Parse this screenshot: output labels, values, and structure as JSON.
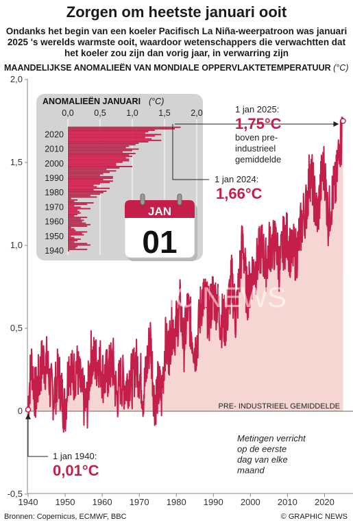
{
  "header": {
    "title": "Zorgen om heetste januari ooit",
    "subtitle": "Ondanks het begin van een koeler Pacifisch La Niña-weerpatroon was januari 2025 's werelds warmste ooit, waardoor wetenschappers die verwachtten dat het koeler zou zijn dan vorig jaar, in verwarring zijn",
    "yaxis_title": "MAANDELIJKSE ANOMALIEËN VAN MONDIALE OPPERVLAKTETEMPERATUUR",
    "yaxis_unit": "(°C)"
  },
  "footer": {
    "source": "Bronnen: Copernicus, ECMWF, BBC",
    "credit": "© GRAPHIC NEWS"
  },
  "watermark": "GRAPHIC NEWS",
  "colors": {
    "line": "#c41e4a",
    "fill": "#f6d6d2",
    "accent": "#c41e4a",
    "inset_bg": "#d3d3d3"
  },
  "chart_data": [
    {
      "type": "line",
      "title": "MAANDELIJKSE ANOMALIEËN VAN MONDIALE OPPERVLAKTETEMPERATUUR (°C)",
      "x_range": [
        1940,
        2025.1
      ],
      "ylim": [
        -0.5,
        2.0
      ],
      "y_ticks": [
        "2,0",
        "1,5",
        "1,0",
        "0,5",
        "0",
        "-0,5"
      ],
      "x_ticks": [
        "1940",
        "1950",
        "1960",
        "1970",
        "1980",
        "1990",
        "2000",
        "2010",
        "2020"
      ],
      "reference_line": {
        "y": 0,
        "label": "PRE- INDUSTRIEEL GEMIDDELDE"
      },
      "note": "Metingen verricht op de eerste dag van elke maand",
      "annotations": [
        {
          "date": "1 jan 2025:",
          "value": "1,75°C",
          "text": "boven pre- industrieel gemiddelde",
          "x": 2025.0,
          "y": 1.75
        },
        {
          "date": "1 jan 2024:",
          "value": "1,66°C",
          "x": 2024.0,
          "y": 1.66
        },
        {
          "date": "1 jan 1940:",
          "value": "0,01°C",
          "x": 1940.0,
          "y": 0.01
        }
      ],
      "calendar": {
        "month": "JAN",
        "day": "01"
      },
      "series": [
        {
          "points": [
            [
              1940,
              0.01
            ],
            [
              1941,
              0.3
            ],
            [
              1942,
              0.12
            ],
            [
              1943,
              0.15
            ],
            [
              1944,
              0.35
            ],
            [
              1945,
              0.3
            ],
            [
              1946,
              0.1
            ],
            [
              1947,
              0.15
            ],
            [
              1948,
              0.2
            ],
            [
              1949,
              0.1
            ],
            [
              1950,
              0.05
            ],
            [
              1951,
              0.25
            ],
            [
              1952,
              0.22
            ],
            [
              1953,
              0.3
            ],
            [
              1954,
              0.12
            ],
            [
              1955,
              0.1
            ],
            [
              1956,
              0.05
            ],
            [
              1957,
              0.3
            ],
            [
              1958,
              0.35
            ],
            [
              1959,
              0.28
            ],
            [
              1960,
              0.22
            ],
            [
              1961,
              0.25
            ],
            [
              1962,
              0.2
            ],
            [
              1963,
              0.3
            ],
            [
              1964,
              0.1
            ],
            [
              1965,
              0.15
            ],
            [
              1966,
              0.2
            ],
            [
              1967,
              0.18
            ],
            [
              1968,
              0.15
            ],
            [
              1969,
              0.35
            ],
            [
              1970,
              0.2
            ],
            [
              1971,
              0.1
            ],
            [
              1972,
              0.3
            ],
            [
              1973,
              0.4
            ],
            [
              1974,
              0.1
            ],
            [
              1975,
              0.15
            ],
            [
              1976,
              0.05
            ],
            [
              1977,
              0.45
            ],
            [
              1978,
              0.35
            ],
            [
              1979,
              0.5
            ],
            [
              1980,
              0.55
            ],
            [
              1981,
              0.6
            ],
            [
              1982,
              0.4
            ],
            [
              1983,
              0.65
            ],
            [
              1984,
              0.45
            ],
            [
              1985,
              0.4
            ],
            [
              1986,
              0.5
            ],
            [
              1987,
              0.65
            ],
            [
              1988,
              0.7
            ],
            [
              1989,
              0.55
            ],
            [
              1990,
              0.7
            ],
            [
              1991,
              0.7
            ],
            [
              1992,
              0.5
            ],
            [
              1993,
              0.55
            ],
            [
              1994,
              0.65
            ],
            [
              1995,
              0.75
            ],
            [
              1996,
              0.6
            ],
            [
              1997,
              0.8
            ],
            [
              1998,
              1.0
            ],
            [
              1999,
              0.75
            ],
            [
              2000,
              0.75
            ],
            [
              2001,
              0.85
            ],
            [
              2002,
              0.95
            ],
            [
              2003,
              0.95
            ],
            [
              2004,
              0.9
            ],
            [
              2005,
              1.0
            ],
            [
              2006,
              0.95
            ],
            [
              2007,
              1.05
            ],
            [
              2008,
              0.85
            ],
            [
              2009,
              1.0
            ],
            [
              2010,
              1.1
            ],
            [
              2011,
              0.9
            ],
            [
              2012,
              0.95
            ],
            [
              2013,
              1.05
            ],
            [
              2014,
              1.1
            ],
            [
              2015,
              1.25
            ],
            [
              2016,
              1.45
            ],
            [
              2017,
              1.3
            ],
            [
              2018,
              1.2
            ],
            [
              2019,
              1.35
            ],
            [
              2020,
              1.45
            ],
            [
              2021,
              1.2
            ],
            [
              2022,
              1.25
            ],
            [
              2023,
              1.35
            ],
            [
              2024,
              1.66
            ],
            [
              2024.5,
              1.6
            ],
            [
              2025,
              1.75
            ]
          ]
        }
      ]
    },
    {
      "type": "bar",
      "title": "ANOMALIEËN JANUARI",
      "unit": "(°C)",
      "orientation": "horizontal",
      "xlim": [
        0,
        2.0
      ],
      "x_ticks": [
        "0,0",
        "0,5",
        "1,0",
        "1,5",
        "2,0"
      ],
      "y_ticks": [
        "2020",
        "2010",
        "2000",
        "1990",
        "1980",
        "1970",
        "1960",
        "1950",
        "1940"
      ],
      "categories": [
        1940,
        1941,
        1942,
        1943,
        1944,
        1945,
        1946,
        1947,
        1948,
        1949,
        1950,
        1951,
        1952,
        1953,
        1954,
        1955,
        1956,
        1957,
        1958,
        1959,
        1960,
        1961,
        1962,
        1963,
        1964,
        1965,
        1966,
        1967,
        1968,
        1969,
        1970,
        1971,
        1972,
        1973,
        1974,
        1975,
        1976,
        1977,
        1978,
        1979,
        1980,
        1981,
        1982,
        1983,
        1984,
        1985,
        1986,
        1987,
        1988,
        1989,
        1990,
        1991,
        1992,
        1993,
        1994,
        1995,
        1996,
        1997,
        1998,
        1999,
        2000,
        2001,
        2002,
        2003,
        2004,
        2005,
        2006,
        2007,
        2008,
        2009,
        2010,
        2011,
        2012,
        2013,
        2014,
        2015,
        2016,
        2017,
        2018,
        2019,
        2020,
        2021,
        2022,
        2023,
        2024,
        2025
      ],
      "values": [
        0.01,
        0.3,
        0.12,
        0.15,
        0.35,
        0.3,
        0.1,
        0.15,
        0.2,
        0.1,
        0.05,
        0.25,
        0.22,
        0.3,
        0.12,
        0.1,
        0.05,
        0.3,
        0.35,
        0.28,
        0.22,
        0.25,
        0.2,
        0.3,
        0.1,
        0.15,
        0.2,
        0.18,
        0.15,
        0.35,
        0.2,
        0.1,
        0.3,
        0.4,
        0.1,
        0.15,
        0.05,
        0.45,
        0.35,
        0.5,
        0.55,
        0.6,
        0.4,
        0.65,
        0.45,
        0.4,
        0.5,
        0.65,
        0.7,
        0.55,
        0.7,
        0.7,
        0.5,
        0.55,
        0.65,
        0.75,
        0.6,
        0.8,
        1.0,
        0.75,
        0.75,
        0.85,
        0.95,
        0.95,
        0.9,
        1.0,
        0.95,
        1.05,
        0.85,
        1.0,
        1.1,
        0.9,
        0.95,
        1.05,
        1.1,
        1.25,
        1.45,
        1.3,
        1.2,
        1.35,
        1.45,
        1.2,
        1.25,
        1.35,
        1.66,
        1.75
      ]
    }
  ]
}
